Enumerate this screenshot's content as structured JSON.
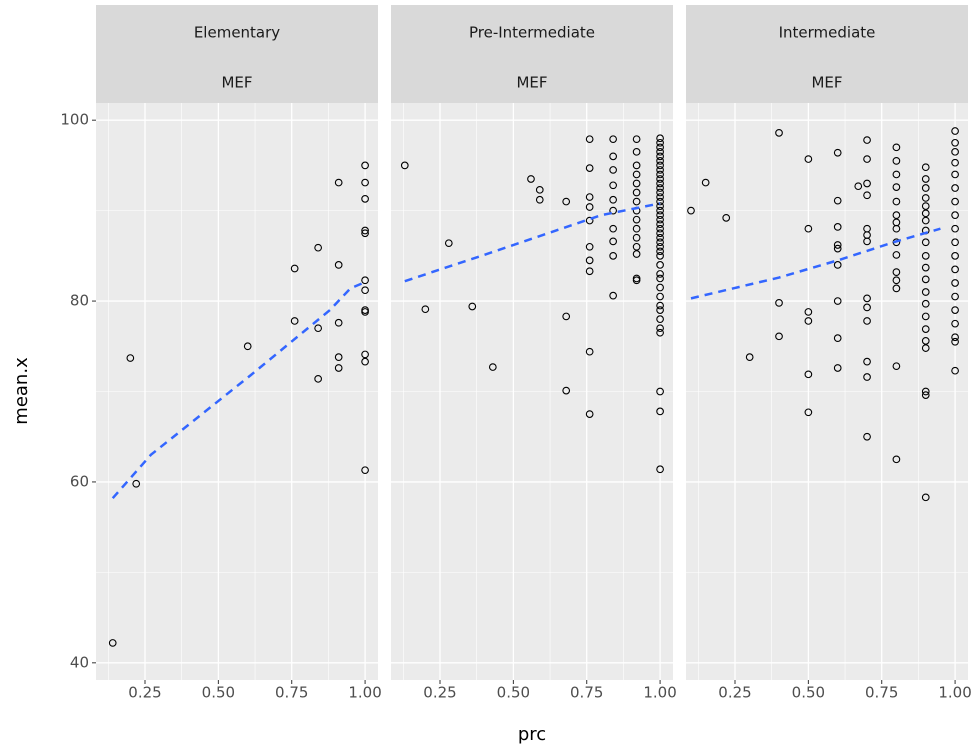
{
  "x_label": "prc",
  "y_label": "mean.x",
  "chart_data": [
    {
      "type": "scatter",
      "title": "Elementary",
      "subtitle": "MEF",
      "x": [
        0.14,
        0.2,
        0.22,
        0.6,
        0.76,
        0.76,
        0.84,
        0.84,
        0.84,
        0.91,
        0.91,
        0.91,
        0.91,
        0.91,
        1,
        1,
        1,
        1,
        1,
        1,
        1,
        1,
        1,
        1,
        1,
        1
      ],
      "y": [
        42.2,
        73.7,
        59.8,
        75,
        83.6,
        77.8,
        85.9,
        77,
        71.4,
        93.1,
        84,
        77.6,
        73.8,
        72.6,
        95,
        93.1,
        91.3,
        87.8,
        87.5,
        82.3,
        81.2,
        79,
        78.8,
        74.1,
        73.3,
        61.3
      ],
      "trend": {
        "x": [
          0.14,
          0.27,
          0.61,
          0.88,
          0.95,
          1
        ],
        "y": [
          58.2,
          63,
          71.8,
          79,
          81.4,
          82.1
        ],
        "color": "#3366ff"
      },
      "xlim": [
        0.083,
        1.044
      ],
      "ylim": [
        38.1,
        101.9
      ],
      "xticks": [
        0.25,
        {
          "value": 0.5,
          "label": "0.50"
        },
        0.75,
        {
          "value": 1,
          "label": "1.00"
        }
      ],
      "yticks": [
        40,
        60,
        80,
        100
      ],
      "xminor": [
        0.125,
        0.375,
        0.625,
        0.875
      ],
      "yminor": [
        50,
        70,
        90
      ]
    },
    {
      "type": "scatter",
      "title": "Pre-Intermediate",
      "subtitle": "MEF",
      "x": [
        0.13,
        0.2,
        0.28,
        0.36,
        0.43,
        0.56,
        0.59,
        0.59,
        0.68,
        0.68,
        0.68,
        0.76,
        0.76,
        0.76,
        0.76,
        0.76,
        0.76,
        0.76,
        0.76,
        0.76,
        0.76,
        0.84,
        0.84,
        0.84,
        0.84,
        0.84,
        0.84,
        0.84,
        0.84,
        0.84,
        0.84,
        0.92,
        0.92,
        0.92,
        0.92,
        0.92,
        0.92,
        0.92,
        0.92,
        0.92,
        0.92,
        0.92,
        0.92,
        0.92,
        0.92,
        0.92,
        1,
        1,
        1,
        1,
        1,
        1,
        1,
        1,
        1,
        1,
        1,
        1,
        1,
        1,
        1,
        1,
        1,
        1,
        1,
        1,
        1,
        1,
        1,
        1,
        1,
        1,
        1,
        1,
        1,
        1,
        1,
        1,
        1,
        1,
        1,
        1,
        1,
        1,
        1,
        1
      ],
      "y": [
        95,
        79.1,
        86.4,
        79.4,
        72.7,
        93.5,
        92.3,
        91.2,
        91,
        78.3,
        70.1,
        97.9,
        94.7,
        91.5,
        90.4,
        88.9,
        86,
        84.5,
        83.3,
        74.4,
        67.5,
        97.9,
        96,
        94.5,
        92.8,
        91.2,
        90,
        88,
        86.6,
        85,
        80.6,
        97.9,
        96.5,
        95,
        94,
        93,
        92,
        91,
        90,
        89,
        88,
        87,
        86,
        85.2,
        82.5,
        82.3,
        98,
        97.5,
        97,
        96.5,
        96,
        95.5,
        95,
        94.5,
        94,
        93.5,
        93,
        92.5,
        92,
        91.5,
        91,
        90.5,
        90,
        89.5,
        89,
        88.5,
        88,
        87.5,
        87,
        86.5,
        86,
        85.5,
        85,
        84,
        83,
        82.5,
        81.5,
        80.5,
        79.5,
        79,
        78,
        77,
        76.5,
        70,
        67.8,
        61.4
      ],
      "trend": {
        "x": [
          0.13,
          0.4,
          0.6,
          0.8,
          1
        ],
        "y": [
          82.2,
          85.1,
          87.3,
          89.5,
          90.8
        ],
        "color": "#3366ff"
      },
      "xlim": [
        0.083,
        1.044
      ],
      "ylim": [
        38.1,
        101.9
      ],
      "xticks": [
        0.25,
        {
          "value": 0.5,
          "label": "0.50"
        },
        0.75,
        {
          "value": 1,
          "label": "1.00"
        }
      ],
      "yticks": [
        40,
        60,
        80,
        100
      ],
      "xminor": [
        0.125,
        0.375,
        0.625,
        0.875
      ],
      "yminor": [
        50,
        70,
        90
      ]
    },
    {
      "type": "scatter",
      "title": "Intermediate",
      "subtitle": "MEF",
      "x": [
        0.1,
        0.15,
        0.22,
        0.3,
        0.4,
        0.4,
        0.4,
        0.5,
        0.5,
        0.5,
        0.5,
        0.5,
        0.5,
        0.6,
        0.6,
        0.6,
        0.6,
        0.6,
        0.6,
        0.6,
        0.6,
        0.6,
        0.67,
        0.7,
        0.7,
        0.7,
        0.7,
        0.7,
        0.7,
        0.7,
        0.7,
        0.7,
        0.7,
        0.7,
        0.7,
        0.7,
        0.8,
        0.8,
        0.8,
        0.8,
        0.8,
        0.8,
        0.8,
        0.8,
        0.8,
        0.8,
        0.8,
        0.8,
        0.8,
        0.8,
        0.8,
        0.9,
        0.9,
        0.9,
        0.9,
        0.9,
        0.9,
        0.9,
        0.9,
        0.9,
        0.9,
        0.9,
        0.9,
        0.9,
        0.9,
        0.9,
        0.9,
        0.9,
        0.9,
        0.9,
        0.9,
        0.9,
        1,
        1,
        1,
        1,
        1,
        1,
        1,
        1,
        1,
        1,
        1,
        1,
        1,
        1,
        1,
        1,
        1,
        1,
        1
      ],
      "y": [
        90,
        93.1,
        89.2,
        73.8,
        98.6,
        79.8,
        76.1,
        95.7,
        88,
        78.8,
        77.8,
        71.9,
        67.7,
        96.4,
        91.1,
        88.2,
        86.2,
        85.8,
        84,
        80,
        75.9,
        72.6,
        92.7,
        97.8,
        95.7,
        93,
        91.7,
        88,
        87.3,
        86.6,
        80.3,
        79.3,
        77.8,
        73.3,
        71.6,
        65,
        97,
        95.5,
        94,
        92.6,
        91,
        89.5,
        88.7,
        88,
        86.5,
        85.1,
        83.2,
        82.3,
        81.4,
        72.8,
        62.5,
        94.8,
        93.5,
        92.5,
        91.4,
        90.5,
        89.7,
        88.9,
        87.8,
        86.5,
        85,
        83.7,
        82.4,
        81,
        79.7,
        78.3,
        76.9,
        75.6,
        74.8,
        70,
        69.6,
        58.3,
        98.8,
        97.5,
        96.5,
        95.3,
        94,
        92.5,
        91,
        89.5,
        88,
        86.5,
        85,
        83.5,
        82,
        80.5,
        79,
        77.5,
        76,
        75.5,
        72.3
      ],
      "trend": {
        "x": [
          0.1,
          0.4,
          0.6,
          0.8,
          0.95
        ],
        "y": [
          80.3,
          82.6,
          84.5,
          86.6,
          88
        ],
        "color": "#3366ff"
      },
      "xlim": [
        0.083,
        1.044
      ],
      "ylim": [
        38.1,
        101.9
      ],
      "xticks": [
        0.25,
        {
          "value": 0.5,
          "label": "0.50"
        },
        0.75,
        {
          "value": 1,
          "label": "1.00"
        }
      ],
      "yticks": [
        40,
        60,
        80,
        100
      ],
      "xminor": [
        0.125,
        0.375,
        0.625,
        0.875
      ],
      "yminor": [
        50,
        70,
        90
      ]
    }
  ]
}
